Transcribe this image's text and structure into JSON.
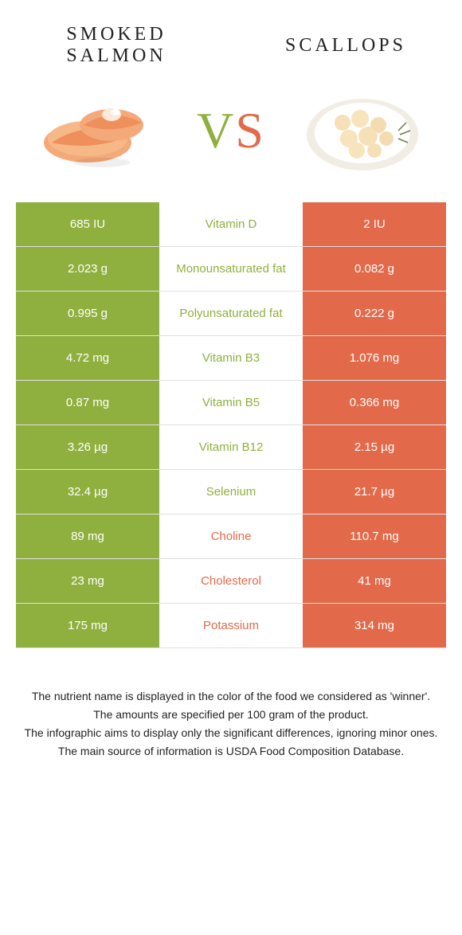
{
  "colors": {
    "left": "#8fb03e",
    "right": "#e26a4b",
    "white": "#ffffff"
  },
  "header": {
    "left_title": "Smoked salmon",
    "right_title": "Scallops",
    "vs_v": "V",
    "vs_s": "S"
  },
  "rows": [
    {
      "left": "685 IU",
      "label": "Vitamin D",
      "right": "2 IU",
      "winner": "left"
    },
    {
      "left": "2.023 g",
      "label": "Monounsaturated fat",
      "right": "0.082 g",
      "winner": "left"
    },
    {
      "left": "0.995 g",
      "label": "Polyunsaturated fat",
      "right": "0.222 g",
      "winner": "left"
    },
    {
      "left": "4.72 mg",
      "label": "Vitamin B3",
      "right": "1.076 mg",
      "winner": "left"
    },
    {
      "left": "0.87 mg",
      "label": "Vitamin B5",
      "right": "0.366 mg",
      "winner": "left"
    },
    {
      "left": "3.26 µg",
      "label": "Vitamin B12",
      "right": "2.15 µg",
      "winner": "left"
    },
    {
      "left": "32.4 µg",
      "label": "Selenium",
      "right": "21.7 µg",
      "winner": "left"
    },
    {
      "left": "89 mg",
      "label": "Choline",
      "right": "110.7 mg",
      "winner": "right"
    },
    {
      "left": "23 mg",
      "label": "Cholesterol",
      "right": "41 mg",
      "winner": "right"
    },
    {
      "left": "175 mg",
      "label": "Potassium",
      "right": "314 mg",
      "winner": "right"
    }
  ],
  "footer": {
    "line1": "The nutrient name is displayed in the color of the food we considered as 'winner'.",
    "line2": "The amounts are specified per 100 gram of the product.",
    "line3": "The infographic aims to display only the significant differences, ignoring minor ones.",
    "line4": "The main source of information is USDA Food Composition Database."
  }
}
